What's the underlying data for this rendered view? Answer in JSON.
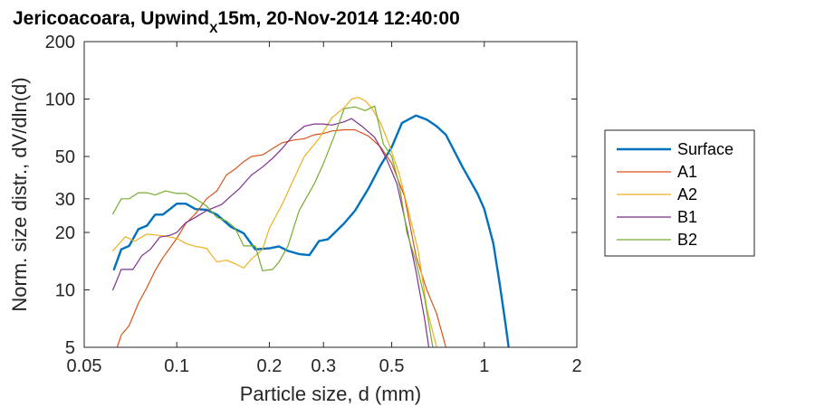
{
  "chart_data": {
    "type": "line",
    "title": {
      "prefix": "Jericoacoara, Upwind",
      "subscript": "X",
      "suffix": "15m, 20-Nov-2014 12:40:00"
    },
    "xlabel": "Particle size, d (mm)",
    "ylabel": "Norm. size distr., dV/dln(d)",
    "x_scale": "log",
    "y_scale": "log",
    "xlim": [
      0.05,
      2
    ],
    "ylim": [
      5,
      200
    ],
    "x_ticks": [
      {
        "value": 0.05,
        "label": "0.05"
      },
      {
        "value": 0.1,
        "label": "0.1"
      },
      {
        "value": 0.2,
        "label": "0.2"
      },
      {
        "value": 0.3,
        "label": "0.3"
      },
      {
        "value": 0.5,
        "label": "0.5"
      },
      {
        "value": 1,
        "label": "1"
      },
      {
        "value": 2,
        "label": "2"
      }
    ],
    "y_ticks": [
      {
        "value": 5,
        "label": "5"
      },
      {
        "value": 10,
        "label": "10"
      },
      {
        "value": 20,
        "label": "20"
      },
      {
        "value": 30,
        "label": "30"
      },
      {
        "value": 50,
        "label": "50"
      },
      {
        "value": 100,
        "label": "100"
      },
      {
        "value": 200,
        "label": "200"
      }
    ],
    "grid": false,
    "legend_position": "outside-right",
    "series": [
      {
        "name": "Surface",
        "color": "#0072BD",
        "width": 2.4,
        "points": [
          [
            0.0625,
            12.8
          ],
          [
            0.066,
            16.3
          ],
          [
            0.07,
            17
          ],
          [
            0.075,
            20.8
          ],
          [
            0.08,
            21.7
          ],
          [
            0.085,
            24.8
          ],
          [
            0.09,
            24.8
          ],
          [
            0.095,
            26.5
          ],
          [
            0.1,
            28.3
          ],
          [
            0.107,
            28.3
          ],
          [
            0.115,
            26.5
          ],
          [
            0.125,
            26.3
          ],
          [
            0.135,
            24.8
          ],
          [
            0.15,
            21.4
          ],
          [
            0.165,
            19.8
          ],
          [
            0.18,
            16.3
          ],
          [
            0.2,
            16.5
          ],
          [
            0.215,
            16.9
          ],
          [
            0.23,
            16
          ],
          [
            0.25,
            15.4
          ],
          [
            0.27,
            15.2
          ],
          [
            0.29,
            18
          ],
          [
            0.31,
            18.4
          ],
          [
            0.35,
            22.3
          ],
          [
            0.38,
            26
          ],
          [
            0.42,
            34
          ],
          [
            0.46,
            45
          ],
          [
            0.5,
            56
          ],
          [
            0.54,
            75
          ],
          [
            0.6,
            82
          ],
          [
            0.65,
            78
          ],
          [
            0.7,
            72
          ],
          [
            0.75,
            65
          ],
          [
            0.85,
            44
          ],
          [
            0.95,
            32
          ],
          [
            1.0,
            26.5
          ],
          [
            1.07,
            17.5
          ],
          [
            1.12,
            11
          ],
          [
            1.17,
            6.8
          ],
          [
            1.2,
            5
          ]
        ]
      },
      {
        "name": "A1",
        "color": "#D95319",
        "width": 1.2,
        "points": [
          [
            0.064,
            5
          ],
          [
            0.066,
            5.8
          ],
          [
            0.07,
            6.5
          ],
          [
            0.075,
            8.5
          ],
          [
            0.08,
            10.3
          ],
          [
            0.085,
            12.6
          ],
          [
            0.09,
            14.7
          ],
          [
            0.1,
            18.6
          ],
          [
            0.107,
            22.3
          ],
          [
            0.115,
            25
          ],
          [
            0.125,
            30
          ],
          [
            0.135,
            33
          ],
          [
            0.145,
            40
          ],
          [
            0.155,
            43
          ],
          [
            0.165,
            47
          ],
          [
            0.175,
            50
          ],
          [
            0.19,
            51
          ],
          [
            0.205,
            55
          ],
          [
            0.22,
            59
          ],
          [
            0.24,
            61
          ],
          [
            0.26,
            62
          ],
          [
            0.28,
            65
          ],
          [
            0.3,
            66
          ],
          [
            0.32,
            68
          ],
          [
            0.35,
            69
          ],
          [
            0.38,
            69
          ],
          [
            0.42,
            64
          ],
          [
            0.46,
            56
          ],
          [
            0.5,
            46
          ],
          [
            0.55,
            31
          ],
          [
            0.6,
            15
          ],
          [
            0.65,
            10
          ],
          [
            0.7,
            7.5
          ],
          [
            0.75,
            5
          ]
        ]
      },
      {
        "name": "A2",
        "color": "#EDB120",
        "width": 1.2,
        "points": [
          [
            0.062,
            16
          ],
          [
            0.068,
            19
          ],
          [
            0.073,
            18
          ],
          [
            0.08,
            19.6
          ],
          [
            0.09,
            19.2
          ],
          [
            0.1,
            18.6
          ],
          [
            0.107,
            17.5
          ],
          [
            0.115,
            16.9
          ],
          [
            0.125,
            16.5
          ],
          [
            0.135,
            14
          ],
          [
            0.145,
            14.3
          ],
          [
            0.155,
            13.7
          ],
          [
            0.165,
            13
          ],
          [
            0.175,
            14.5
          ],
          [
            0.19,
            16.3
          ],
          [
            0.2,
            21
          ],
          [
            0.22,
            28
          ],
          [
            0.24,
            38
          ],
          [
            0.26,
            50
          ],
          [
            0.29,
            62
          ],
          [
            0.32,
            80
          ],
          [
            0.35,
            90
          ],
          [
            0.37,
            100
          ],
          [
            0.39,
            102
          ],
          [
            0.41,
            98
          ],
          [
            0.43,
            90
          ],
          [
            0.46,
            75
          ],
          [
            0.49,
            58
          ],
          [
            0.53,
            40
          ],
          [
            0.57,
            25
          ],
          [
            0.61,
            16
          ],
          [
            0.65,
            8
          ],
          [
            0.7,
            5
          ]
        ]
      },
      {
        "name": "B1",
        "color": "#7E2F8E",
        "width": 1.2,
        "points": [
          [
            0.062,
            10
          ],
          [
            0.066,
            12.8
          ],
          [
            0.072,
            12.8
          ],
          [
            0.077,
            15.1
          ],
          [
            0.082,
            16.3
          ],
          [
            0.088,
            18.9
          ],
          [
            0.095,
            19.3
          ],
          [
            0.1,
            20
          ],
          [
            0.107,
            22.5
          ],
          [
            0.115,
            24
          ],
          [
            0.125,
            26
          ],
          [
            0.14,
            28
          ],
          [
            0.15,
            31
          ],
          [
            0.16,
            34
          ],
          [
            0.175,
            40
          ],
          [
            0.19,
            44
          ],
          [
            0.205,
            49
          ],
          [
            0.22,
            55
          ],
          [
            0.24,
            65
          ],
          [
            0.26,
            72
          ],
          [
            0.28,
            74
          ],
          [
            0.3,
            74
          ],
          [
            0.32,
            73
          ],
          [
            0.35,
            76
          ],
          [
            0.37,
            79
          ],
          [
            0.4,
            72
          ],
          [
            0.44,
            63
          ],
          [
            0.48,
            49
          ],
          [
            0.52,
            36
          ],
          [
            0.56,
            21
          ],
          [
            0.6,
            12.5
          ],
          [
            0.64,
            7
          ],
          [
            0.66,
            5
          ]
        ]
      },
      {
        "name": "B2",
        "color": "#77AC30",
        "width": 1.2,
        "points": [
          [
            0.062,
            25
          ],
          [
            0.066,
            30
          ],
          [
            0.07,
            30
          ],
          [
            0.075,
            32.3
          ],
          [
            0.08,
            32.3
          ],
          [
            0.085,
            31.4
          ],
          [
            0.092,
            33
          ],
          [
            0.1,
            32
          ],
          [
            0.107,
            32
          ],
          [
            0.115,
            30
          ],
          [
            0.125,
            27.5
          ],
          [
            0.135,
            24
          ],
          [
            0.145,
            23
          ],
          [
            0.155,
            21
          ],
          [
            0.165,
            17
          ],
          [
            0.18,
            17
          ],
          [
            0.19,
            12.6
          ],
          [
            0.205,
            12.8
          ],
          [
            0.215,
            14
          ],
          [
            0.23,
            17
          ],
          [
            0.25,
            26
          ],
          [
            0.28,
            36
          ],
          [
            0.3,
            46
          ],
          [
            0.33,
            68
          ],
          [
            0.35,
            89
          ],
          [
            0.38,
            91
          ],
          [
            0.41,
            87
          ],
          [
            0.44,
            92
          ],
          [
            0.47,
            58
          ],
          [
            0.5,
            50
          ],
          [
            0.53,
            35
          ],
          [
            0.56,
            20
          ],
          [
            0.6,
            14
          ],
          [
            0.64,
            9
          ],
          [
            0.68,
            5
          ]
        ]
      }
    ]
  }
}
